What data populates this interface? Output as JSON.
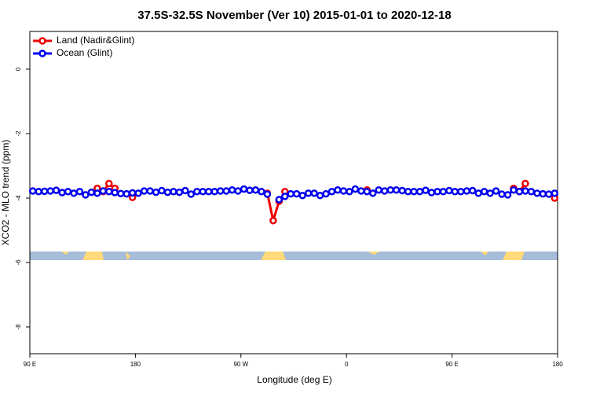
{
  "chart_data": {
    "type": "line",
    "title": "37.5S-32.5S November (Ver 10)   2015-01-01 to 2020-12-18",
    "x_label": "Longitude (deg E)",
    "y_label": "XCO2 - MLO trend (ppm)",
    "xlim": [
      90,
      540
    ],
    "xticks": [
      {
        "value": 90,
        "label": "90 E"
      },
      180,
      {
        "value": 270,
        "label": "90 W"
      },
      {
        "value": 360,
        "label": "0"
      },
      {
        "value": 450,
        "label": "90 E"
      },
      {
        "value": 540,
        "label": "180"
      }
    ],
    "ylim": [
      -8.83,
      1.17
    ],
    "yticks": [
      0,
      -2,
      -4,
      -6,
      -8
    ],
    "legend": "top-left",
    "series": [
      {
        "name": "Land (Nadir&Glint)",
        "color": "#ee0000",
        "x": [
          147.5,
          152.5,
          157.5,
          162.5,
          167.5,
          177.5,
          182.5,
          292.5,
          297.5,
          302.5,
          307.5,
          312.5,
          377.5,
          382.5,
          502.5,
          507.5,
          512.5,
          517.5,
          537.5
        ],
        "values": [
          -3.7,
          -3.8,
          -3.55,
          -3.7,
          null,
          -3.98,
          null,
          -3.85,
          -4.7,
          -4.1,
          -3.8,
          null,
          -3.75,
          null,
          -3.7,
          -3.8,
          -3.55,
          null,
          -4.0
        ]
      },
      {
        "name": "Ocean (Glint)",
        "color": "#0000ee",
        "x": [
          92.5,
          97.5,
          102.5,
          107.5,
          112.5,
          117.5,
          122.5,
          127.5,
          132.5,
          137.5,
          142.5,
          147.5,
          152.5,
          157.5,
          162.5,
          167.5,
          172.5,
          177.5,
          182.5,
          187.5,
          192.5,
          197.5,
          202.5,
          207.5,
          212.5,
          217.5,
          222.5,
          227.5,
          232.5,
          237.5,
          242.5,
          247.5,
          252.5,
          257.5,
          262.5,
          267.5,
          272.5,
          277.5,
          282.5,
          287.5,
          292.5,
          297.5,
          302.5,
          307.5,
          312.5,
          317.5,
          322.5,
          327.5,
          332.5,
          337.5,
          342.5,
          347.5,
          352.5,
          357.5,
          362.5,
          367.5,
          372.5,
          377.5,
          382.5,
          387.5,
          392.5,
          397.5,
          402.5,
          407.5,
          412.5,
          417.5,
          422.5,
          427.5,
          432.5,
          437.5,
          442.5,
          447.5,
          452.5,
          457.5,
          462.5,
          467.5,
          472.5,
          477.5,
          482.5,
          487.5,
          492.5,
          497.5,
          502.5,
          507.5,
          512.5,
          517.5,
          522.5,
          527.5,
          532.5,
          537.5
        ],
        "values": [
          -3.78,
          -3.8,
          -3.79,
          -3.78,
          -3.76,
          -3.83,
          -3.8,
          -3.85,
          -3.8,
          -3.9,
          -3.82,
          -3.85,
          -3.78,
          -3.8,
          -3.83,
          -3.86,
          -3.87,
          -3.84,
          -3.85,
          -3.78,
          -3.78,
          -3.82,
          -3.77,
          -3.82,
          -3.8,
          -3.82,
          -3.77,
          -3.88,
          -3.8,
          -3.8,
          -3.8,
          -3.8,
          -3.78,
          -3.78,
          -3.75,
          -3.78,
          -3.72,
          -3.76,
          -3.75,
          -3.8,
          -3.88,
          null,
          -4.05,
          -3.95,
          -3.87,
          -3.87,
          -3.92,
          -3.85,
          -3.85,
          -3.92,
          -3.87,
          -3.8,
          -3.75,
          -3.78,
          -3.8,
          -3.72,
          -3.78,
          -3.8,
          -3.85,
          -3.75,
          -3.78,
          -3.75,
          -3.75,
          -3.77,
          -3.8,
          -3.8,
          -3.8,
          -3.76,
          -3.83,
          -3.8,
          -3.8,
          -3.77,
          -3.8,
          -3.8,
          -3.78,
          -3.77,
          -3.85,
          -3.8,
          -3.85,
          -3.78,
          -3.88,
          -3.9,
          -3.75,
          -3.8,
          -3.78,
          -3.8,
          -3.85,
          -3.87,
          -3.88,
          -3.85
        ]
      }
    ]
  }
}
